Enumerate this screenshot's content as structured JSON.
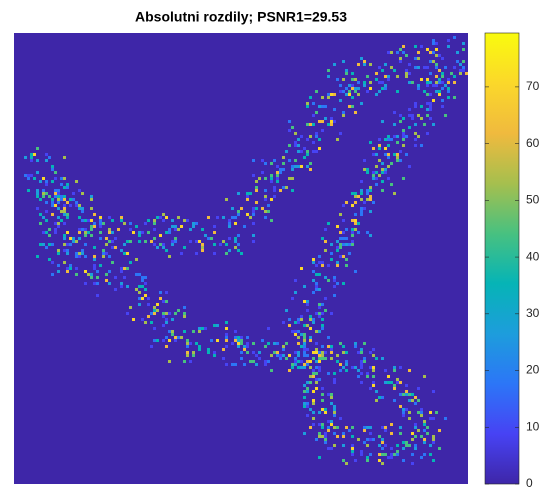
{
  "chart_data": {
    "type": "image",
    "title": "Absolutni rozdily; PSNR1=29.53",
    "colorbar": {
      "clim": [
        0,
        79.5
      ],
      "ticks": [
        0,
        10,
        20,
        30,
        40,
        50,
        60,
        70
      ]
    },
    "colormap": [
      "#3e26a8",
      "#4743f4",
      "#2c76f7",
      "#1d9ddc",
      "#06b4b6",
      "#48c180",
      "#a6bf4e",
      "#f0ba3e",
      "#fbd82a",
      "#f9fb0e"
    ]
  }
}
